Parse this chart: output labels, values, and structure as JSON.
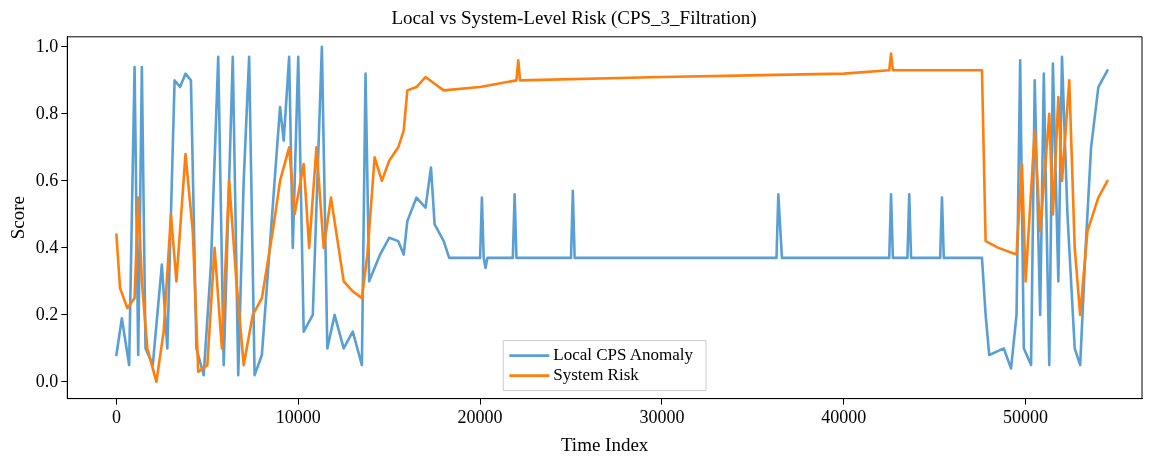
{
  "chart_data": {
    "type": "line",
    "title": "Local vs System-Level Risk (CPS_3_Filtration)",
    "xlabel": "Time Index",
    "ylabel": "Score",
    "xlim": [
      -2700,
      56400
    ],
    "xticks": [
      0,
      10000,
      20000,
      30000,
      40000,
      50000
    ],
    "ylim": [
      -0.05,
      1.03
    ],
    "yticks": [
      {
        "value": 0,
        "label": "0.0"
      },
      {
        "value": 0.2,
        "label": "0.2"
      },
      {
        "value": 0.4,
        "label": "0.4"
      },
      {
        "value": 0.6,
        "label": "0.6"
      },
      {
        "value": 0.8,
        "label": "0.8"
      },
      {
        "value": 1,
        "label": "1.0"
      }
    ],
    "grid": false,
    "legend": "bottom",
    "marker": "none",
    "line_style": "solid",
    "series": [
      {
        "name": "Local CPS Anomaly",
        "color": "#5a9fd4",
        "x": [
          0,
          300,
          700,
          1000,
          1200,
          1400,
          1600,
          2000,
          2500,
          2800,
          3200,
          3500,
          3800,
          4100,
          4400,
          4800,
          5200,
          5600,
          5900,
          6400,
          6700,
          7000,
          7300,
          7600,
          8000,
          8700,
          9000,
          9200,
          9500,
          9700,
          10000,
          10300,
          10800,
          11300,
          11600,
          12000,
          12500,
          13000,
          13500,
          13700,
          13900,
          14500,
          15000,
          15500,
          15800,
          16000,
          16500,
          17000,
          17300,
          17500,
          18000,
          18300,
          20000,
          20100,
          20200,
          20300,
          20400,
          21800,
          21900,
          22000,
          25000,
          25100,
          25200,
          36300,
          36400,
          36600,
          42500,
          42600,
          42700,
          43500,
          43600,
          43700,
          45300,
          45400,
          45500,
          47600,
          47800,
          48000,
          48800,
          49200,
          49500,
          49700,
          49900,
          50300,
          50500,
          50800,
          51000,
          51300,
          51500,
          51800,
          52000,
          52300,
          52700,
          53000,
          53300,
          53600,
          54000,
          54500
        ],
        "values": [
          0.08,
          0.19,
          0.05,
          0.94,
          0.08,
          0.94,
          0.1,
          0.05,
          0.35,
          0.1,
          0.9,
          0.88,
          0.92,
          0.9,
          0.1,
          0.02,
          0.35,
          0.97,
          0.05,
          0.97,
          0.02,
          0.6,
          0.97,
          0.02,
          0.08,
          0.6,
          0.82,
          0.72,
          0.97,
          0.4,
          0.97,
          0.15,
          0.2,
          1.0,
          0.1,
          0.2,
          0.1,
          0.15,
          0.05,
          0.92,
          0.3,
          0.38,
          0.43,
          0.42,
          0.38,
          0.48,
          0.55,
          0.52,
          0.64,
          0.47,
          0.42,
          0.37,
          0.37,
          0.55,
          0.37,
          0.34,
          0.37,
          0.37,
          0.56,
          0.37,
          0.37,
          0.57,
          0.37,
          0.37,
          0.56,
          0.37,
          0.37,
          0.56,
          0.37,
          0.37,
          0.56,
          0.37,
          0.37,
          0.55,
          0.37,
          0.37,
          0.2,
          0.08,
          0.1,
          0.04,
          0.2,
          0.96,
          0.1,
          0.05,
          0.9,
          0.2,
          0.92,
          0.05,
          0.95,
          0.3,
          0.97,
          0.5,
          0.1,
          0.05,
          0.4,
          0.7,
          0.88,
          0.93
        ]
      },
      {
        "name": "System Risk",
        "color": "#ff7f0e",
        "x": [
          0,
          200,
          600,
          1000,
          1200,
          1400,
          1700,
          2200,
          2600,
          3000,
          3300,
          3800,
          4200,
          4500,
          5000,
          5400,
          5800,
          6200,
          6600,
          7000,
          7500,
          8000,
          8600,
          9000,
          9500,
          9800,
          10300,
          10600,
          11000,
          11400,
          11800,
          12500,
          13000,
          13500,
          13800,
          14200,
          14600,
          15000,
          15500,
          15800,
          16000,
          16500,
          17000,
          17500,
          18000,
          20000,
          22000,
          22100,
          22200,
          30000,
          40000,
          42500,
          42600,
          42700,
          47600,
          47800,
          48500,
          49500,
          49800,
          50000,
          50500,
          50800,
          51300,
          51500,
          51800,
          52000,
          52400,
          52700,
          53000,
          53400,
          54000,
          54500
        ],
        "values": [
          0.44,
          0.28,
          0.22,
          0.25,
          0.55,
          0.3,
          0.1,
          0.0,
          0.15,
          0.5,
          0.3,
          0.68,
          0.45,
          0.03,
          0.05,
          0.4,
          0.1,
          0.6,
          0.3,
          0.05,
          0.2,
          0.25,
          0.45,
          0.6,
          0.7,
          0.5,
          0.65,
          0.4,
          0.7,
          0.4,
          0.55,
          0.3,
          0.27,
          0.25,
          0.38,
          0.67,
          0.6,
          0.66,
          0.7,
          0.75,
          0.87,
          0.88,
          0.91,
          0.89,
          0.87,
          0.88,
          0.9,
          0.96,
          0.9,
          0.91,
          0.92,
          0.93,
          0.98,
          0.93,
          0.93,
          0.42,
          0.4,
          0.38,
          0.65,
          0.3,
          0.75,
          0.45,
          0.8,
          0.5,
          0.85,
          0.6,
          0.9,
          0.4,
          0.2,
          0.45,
          0.55,
          0.6
        ]
      }
    ]
  }
}
